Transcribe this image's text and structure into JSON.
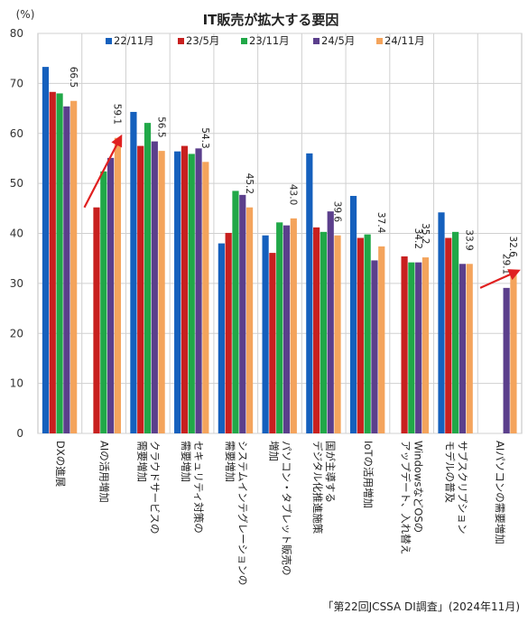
{
  "chart_data": {
    "type": "bar",
    "title": "IT販売が拡大する要因",
    "unit_label": "(%)",
    "source": "「第22回JCSSA DI調査」(2024年11月)",
    "ylim": [
      0,
      80
    ],
    "y_ticks": [
      0,
      10,
      20,
      30,
      40,
      50,
      60,
      70,
      80
    ],
    "grid": true,
    "legend_position": "top",
    "categories": [
      [
        "DXの進展"
      ],
      [
        "AIの活用増加"
      ],
      [
        "クラウドサービスの",
        "需要増加"
      ],
      [
        "セキュリティ対策の",
        "需要増加"
      ],
      [
        "システムインテグレーションの",
        "需要増加"
      ],
      [
        "パソコン・タブレット販売の",
        "増加"
      ],
      [
        "国が主導する",
        "デジタル化推進施策"
      ],
      [
        "IoTの活用増加"
      ],
      [
        "WindowsなどOSの",
        "アップデート、入れ替え"
      ],
      [
        "サブスクリプション",
        "モデルの普及"
      ],
      [
        "AIパソコンの需要増加"
      ]
    ],
    "series": [
      {
        "name": "22/11月",
        "color": "#1560BD",
        "values": [
          73.3,
          null,
          64.3,
          56.4,
          38.0,
          39.6,
          56.0,
          47.5,
          null,
          44.2,
          null
        ]
      },
      {
        "name": "23/5月",
        "color": "#C8201F",
        "values": [
          68.3,
          45.2,
          57.5,
          57.5,
          40.1,
          36.1,
          41.2,
          39.1,
          35.4,
          39.1,
          null
        ]
      },
      {
        "name": "23/11月",
        "color": "#21A848",
        "values": [
          68.0,
          52.4,
          62.1,
          55.9,
          48.5,
          42.2,
          40.3,
          39.8,
          34.2,
          40.3,
          null
        ]
      },
      {
        "name": "24/5月",
        "color": "#5B3F8C",
        "values": [
          65.4,
          55.1,
          58.4,
          57.0,
          47.7,
          41.6,
          44.4,
          34.6,
          34.2,
          33.9,
          29.1
        ]
      },
      {
        "name": "24/11月",
        "color": "#F4A45C",
        "values": [
          66.5,
          59.1,
          56.5,
          54.3,
          45.2,
          43.0,
          39.6,
          37.4,
          35.2,
          33.9,
          32.6
        ]
      }
    ],
    "data_labels": [
      {
        "category": 0,
        "value": 66.5,
        "text": "66.5"
      },
      {
        "category": 1,
        "value": 59.1,
        "text": "59.1"
      },
      {
        "category": 2,
        "value": 56.5,
        "text": "56.5"
      },
      {
        "category": 3,
        "value": 54.3,
        "text": "54.3"
      },
      {
        "category": 4,
        "value": 45.2,
        "text": "45.2"
      },
      {
        "category": 5,
        "value": 43.0,
        "text": "43.0"
      },
      {
        "category": 6,
        "value": 39.6,
        "text": "39.6"
      },
      {
        "category": 7,
        "value": 37.4,
        "text": "37.4"
      },
      {
        "category": 8,
        "value": 34.2,
        "text": "34.2"
      },
      {
        "category": 8,
        "value": 35.2,
        "text": "35.2"
      },
      {
        "category": 9,
        "value": 33.9,
        "text": "33.9"
      },
      {
        "category": 10,
        "value": 29.1,
        "text": "29.1"
      },
      {
        "category": 10,
        "value": 32.6,
        "text": "32.6"
      }
    ],
    "trend_arrows": [
      {
        "category": 1,
        "from_value": 45.2,
        "to_value": 59.1,
        "color": "#E02020"
      },
      {
        "category": 10,
        "from_value": 29.1,
        "to_value": 32.6,
        "color": "#E02020"
      }
    ]
  }
}
